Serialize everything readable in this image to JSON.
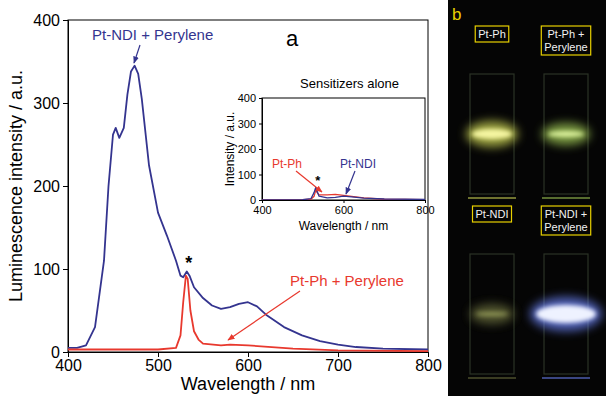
{
  "chart_data": [
    {
      "type": "line",
      "xlabel": "Wavelength / nm",
      "ylabel": "Luminescence intensity / a.u.",
      "xlim": [
        400,
        800
      ],
      "ylim": [
        0,
        400
      ],
      "xticks": [
        400,
        500,
        600,
        700,
        800
      ],
      "yticks": [
        0,
        100,
        200,
        300,
        400
      ],
      "series": [
        {
          "name": "Pt-NDI + Perylene",
          "color": "#34348f",
          "x": [
            400,
            410,
            420,
            430,
            440,
            445,
            450,
            453,
            457,
            462,
            466,
            470,
            474,
            478,
            482,
            490,
            500,
            510,
            520,
            525,
            528,
            532,
            535,
            540,
            550,
            560,
            570,
            580,
            590,
            600,
            610,
            620,
            640,
            660,
            680,
            700,
            720,
            750,
            800
          ],
          "values": [
            5,
            5,
            8,
            30,
            110,
            200,
            262,
            270,
            258,
            270,
            310,
            338,
            345,
            335,
            305,
            225,
            168,
            140,
            110,
            92,
            90,
            97,
            92,
            78,
            65,
            56,
            52,
            54,
            58,
            60,
            55,
            45,
            30,
            20,
            13,
            9,
            6,
            4,
            3
          ]
        },
        {
          "name": "Pt-Ph + Perylene",
          "color": "#e8392e",
          "x": [
            400,
            500,
            520,
            525,
            528,
            531,
            533,
            536,
            540,
            545,
            550,
            570,
            580,
            600,
            650,
            700,
            800
          ],
          "values": [
            3,
            3,
            5,
            20,
            60,
            92,
            88,
            50,
            25,
            15,
            10,
            8,
            9,
            8,
            4,
            2,
            1
          ]
        }
      ],
      "annotations": [
        {
          "text": "a"
        },
        {
          "text": "*",
          "x": 532,
          "y": 97
        }
      ]
    },
    {
      "type": "line",
      "title": "Sensitizers alone",
      "xlabel": "Wavelength / nm",
      "ylabel": "Intensity / a.u.",
      "xlim": [
        400,
        800
      ],
      "ylim": [
        0,
        400
      ],
      "xticks": [
        400,
        600,
        800
      ],
      "yticks": [
        0,
        100,
        200,
        300,
        400
      ],
      "series": [
        {
          "name": "Pt-Ph",
          "color": "#e8392e",
          "x": [
            400,
            500,
            520,
            528,
            532,
            535,
            540,
            560,
            580,
            600,
            650,
            700,
            800
          ],
          "values": [
            0,
            1,
            3,
            15,
            40,
            30,
            20,
            20,
            22,
            18,
            8,
            3,
            1
          ]
        },
        {
          "name": "Pt-NDI",
          "color": "#34348f",
          "x": [
            400,
            500,
            520,
            528,
            532,
            535,
            540,
            560,
            580,
            600,
            620,
            650,
            700,
            800
          ],
          "values": [
            0,
            1,
            5,
            30,
            50,
            35,
            15,
            8,
            10,
            15,
            12,
            7,
            4,
            2
          ]
        }
      ],
      "annotations": [
        {
          "text": "*",
          "x": 532,
          "y": 50
        }
      ]
    }
  ],
  "photo": {
    "label": "b",
    "panels": [
      "Pt-Ph",
      "Pt-Ph + Perylene",
      "Pt-NDI",
      "Pt-NDI + Perylene"
    ]
  }
}
